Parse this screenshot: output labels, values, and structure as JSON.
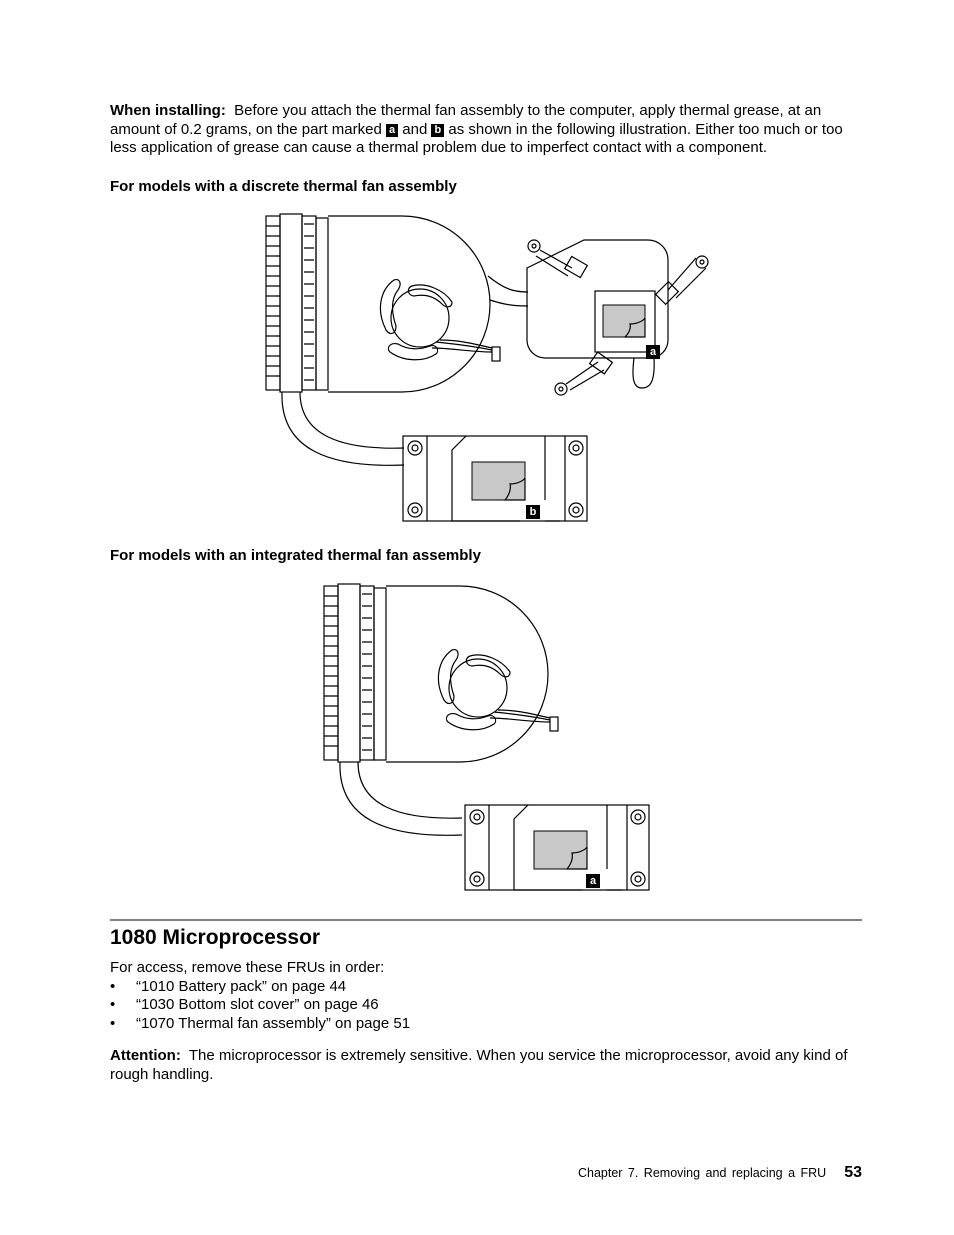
{
  "installing": {
    "label": "When installing:",
    "text_1": "Before you attach the thermal fan assembly to the computer, apply thermal grease, at an amount of 0.2 grams, on the part marked",
    "mark_a": "a",
    "text_2": "and",
    "mark_b": "b",
    "text_3": "as shown in the following illustration. Either too much or too less application of grease can cause a thermal problem due to imperfect contact with a component."
  },
  "discrete": {
    "heading": "For models with a discrete thermal fan assembly",
    "callouts": [
      "a",
      "b"
    ]
  },
  "integrated": {
    "heading": "For models with an integrated thermal fan assembly",
    "callouts": [
      "a"
    ]
  },
  "section": {
    "title": "1080 Microprocessor",
    "intro": "For access, remove these FRUs in order:",
    "items": [
      "“1010 Battery pack” on page 44",
      "“1030 Bottom slot cover” on page 46",
      "“1070 Thermal fan assembly” on page 51"
    ]
  },
  "attention": {
    "label": "Attention:",
    "text": "The microprocessor is extremely sensitive. When you service the microprocessor, avoid any kind of rough handling."
  },
  "footer": {
    "chapter": "Chapter 7. Removing and replacing a FRU",
    "page": "53"
  }
}
